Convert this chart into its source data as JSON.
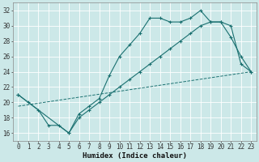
{
  "xlabel": "Humidex (Indice chaleur)",
  "xlim": [
    -0.5,
    23.5
  ],
  "ylim": [
    15.0,
    33.0
  ],
  "yticks": [
    16,
    18,
    20,
    22,
    24,
    26,
    28,
    30,
    32
  ],
  "xticks": [
    0,
    1,
    2,
    3,
    4,
    5,
    6,
    7,
    8,
    9,
    10,
    11,
    12,
    13,
    14,
    15,
    16,
    17,
    18,
    19,
    20,
    21,
    22,
    23
  ],
  "bg_color": "#cce8e8",
  "line_color": "#1a7070",
  "grid_color": "#b0d8d8",
  "line1_x": [
    0,
    1,
    2,
    3,
    4,
    5,
    6,
    7,
    8,
    9,
    10,
    11,
    12,
    13,
    14,
    15,
    16,
    17,
    18,
    19,
    20,
    21,
    22,
    23
  ],
  "line1_y": [
    21,
    20,
    19,
    17,
    17,
    16,
    18.5,
    19.5,
    20.5,
    23.5,
    26,
    27.5,
    29,
    31,
    31,
    30.5,
    30.5,
    31,
    32,
    30.5,
    30.5,
    28.5,
    26,
    24
  ],
  "line2_x": [
    0,
    5,
    6,
    7,
    8,
    9,
    10,
    11,
    12,
    13,
    14,
    15,
    16,
    17,
    18,
    19,
    20,
    21,
    22,
    23
  ],
  "line2_y": [
    21,
    16,
    18,
    19,
    20,
    21,
    22,
    23,
    24,
    25,
    26,
    27,
    28,
    29,
    30,
    30.5,
    30.5,
    30,
    25,
    24
  ],
  "line3_x": [
    0,
    23
  ],
  "line3_y": [
    19.5,
    24
  ],
  "tick_fontsize": 5.5,
  "xlabel_fontsize": 6.5
}
